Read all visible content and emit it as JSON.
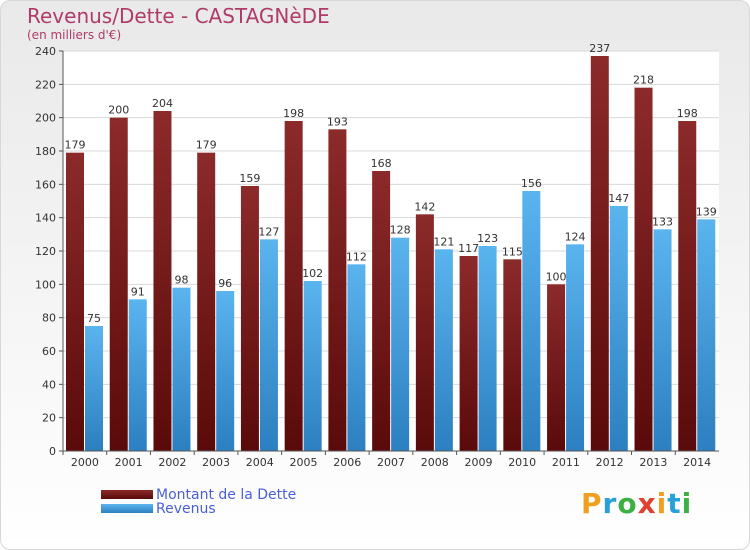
{
  "chart_data": {
    "type": "bar",
    "title": "Revenus/Dette - CASTAGNèDE",
    "subtitle": "(en milliers d'€)",
    "categories": [
      "2000",
      "2001",
      "2002",
      "2003",
      "2004",
      "2005",
      "2006",
      "2007",
      "2008",
      "2009",
      "2010",
      "2011",
      "2012",
      "2013",
      "2014"
    ],
    "series": [
      {
        "name": "Montant de la Dette",
        "color": "#7a1a1a",
        "values": [
          179,
          200,
          204,
          179,
          159,
          198,
          193,
          168,
          142,
          117,
          115,
          100,
          237,
          218,
          198
        ]
      },
      {
        "name": "Revenus",
        "color": "#4aa3e0",
        "values": [
          75,
          91,
          98,
          96,
          127,
          102,
          112,
          128,
          121,
          123,
          156,
          124,
          147,
          133,
          139
        ]
      }
    ],
    "ylim": [
      0,
      240
    ],
    "yticks": [
      0,
      20,
      40,
      60,
      80,
      100,
      120,
      140,
      160,
      180,
      200,
      220,
      240
    ],
    "grid": true,
    "legend_position": "bottom-left"
  },
  "logo": {
    "letters": [
      "P",
      "r",
      "o",
      "x",
      "i",
      "t",
      "i"
    ],
    "colors": [
      "#f0a020",
      "#2aa0d8",
      "#3cb043",
      "#e04030",
      "#f0a020",
      "#2aa0d8",
      "#3cb043"
    ]
  }
}
